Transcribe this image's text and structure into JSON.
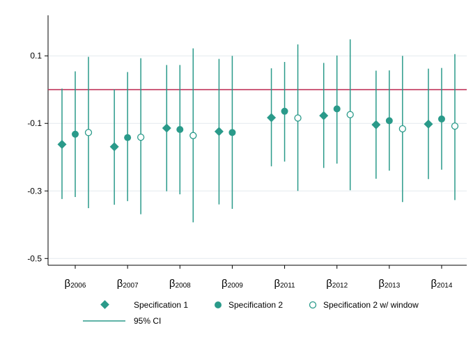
{
  "chart_data": {
    "type": "scatter",
    "title": "",
    "xlabel": "",
    "ylabel": "",
    "ylim": [
      -0.52,
      0.22
    ],
    "yticks": [
      0.1,
      -0.1,
      -0.3,
      -0.5
    ],
    "ytick_labels": [
      "0.1",
      "-0.1",
      "-0.3",
      "-0.5"
    ],
    "grid": true,
    "legend_position": "bottom",
    "reference_line": {
      "y": 0.0,
      "color": "#c0345a"
    },
    "categories": [
      {
        "base": "β",
        "sub": "2006"
      },
      {
        "base": "β",
        "sub": "2007"
      },
      {
        "base": "β",
        "sub": "2008"
      },
      {
        "base": "β",
        "sub": "2009"
      },
      {
        "base": "β",
        "sub": "2011"
      },
      {
        "base": "β",
        "sub": "2012"
      },
      {
        "base": "β",
        "sub": "2013"
      },
      {
        "base": "β",
        "sub": "2014"
      }
    ],
    "series": [
      {
        "name": "Specification 1",
        "marker": "diamond",
        "color": "#2a9a8a",
        "values": [
          -0.162,
          -0.169,
          -0.114,
          -0.124,
          -0.083,
          -0.077,
          -0.104,
          -0.102
        ],
        "ci_low": [
          -0.324,
          -0.341,
          -0.301,
          -0.34,
          -0.227,
          -0.232,
          -0.264,
          -0.265
        ],
        "ci_high": [
          0.003,
          0.001,
          0.073,
          0.091,
          0.063,
          0.079,
          0.056,
          0.062
        ]
      },
      {
        "name": "Specification 2",
        "marker": "circle-filled",
        "color": "#2a9a8a",
        "values": [
          -0.132,
          -0.142,
          -0.118,
          -0.127,
          -0.064,
          -0.057,
          -0.092,
          -0.087
        ],
        "ci_low": [
          -0.318,
          -0.33,
          -0.31,
          -0.353,
          -0.213,
          -0.219,
          -0.24,
          -0.237
        ],
        "ci_high": [
          0.054,
          0.052,
          0.073,
          0.1,
          0.082,
          0.101,
          0.057,
          0.064
        ]
      },
      {
        "name": "Specification 2 w/ window",
        "marker": "circle-hollow",
        "color": "#2a9a8a",
        "values": [
          -0.127,
          -0.141,
          -0.136,
          null,
          -0.084,
          -0.074,
          -0.116,
          -0.108
        ],
        "ci_low": [
          -0.351,
          -0.369,
          -0.393,
          null,
          -0.3,
          -0.298,
          -0.333,
          -0.327
        ],
        "ci_high": [
          0.097,
          0.093,
          0.122,
          null,
          0.134,
          0.149,
          0.1,
          0.105
        ]
      }
    ],
    "ci_legend": "95% CI",
    "ci_color": "#2a9a8a"
  }
}
